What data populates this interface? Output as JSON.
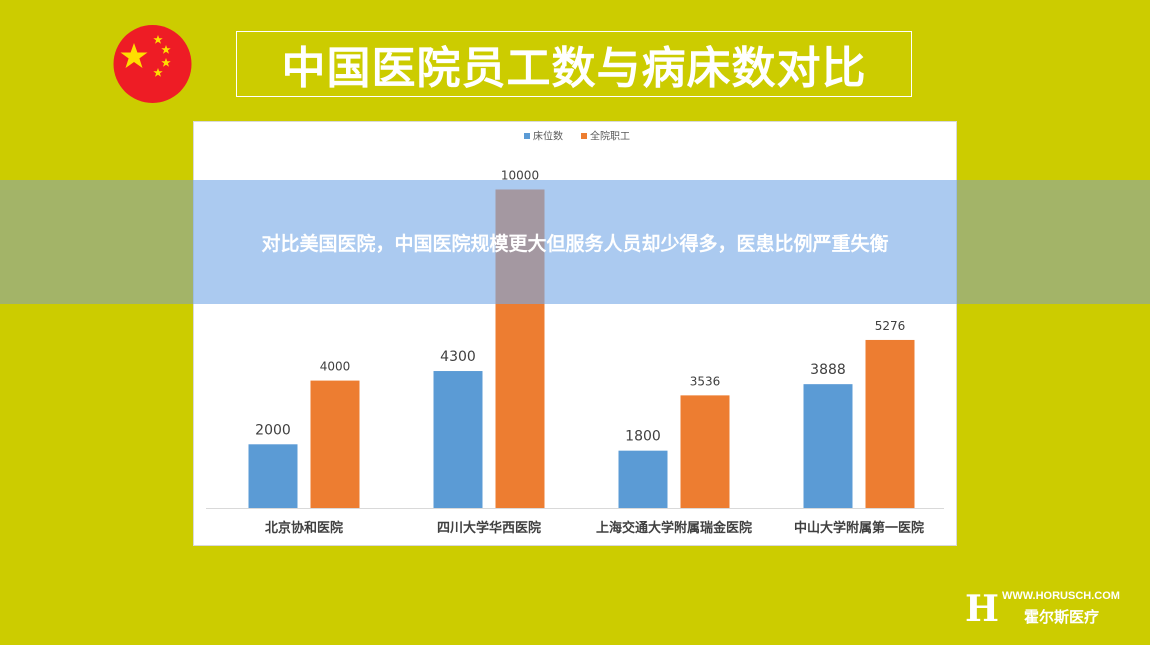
{
  "header": {
    "title": "中国医院员工数与病床数对比"
  },
  "overlay": {
    "text": "对比美国医院，中国医院规模更大但服务人员却少得多，医患比例严重失衡"
  },
  "brand": {
    "url": "WWW.HORUSCH.COM",
    "name": "霍尔斯医疗",
    "logo_letter": "H"
  },
  "colors": {
    "background": "#cccc00",
    "series_beds": "#5b9bd5",
    "series_staff": "#ed7d31",
    "flag_red": "#ee1c25",
    "flag_star": "#ffde00"
  },
  "chart_data": {
    "type": "bar",
    "categories": [
      "北京协和医院",
      "四川大学华西医院",
      "上海交通大学附属瑞金医院",
      "中山大学附属第一医院"
    ],
    "series": [
      {
        "name": "床位数",
        "values": [
          2000,
          4300,
          1800,
          3888
        ]
      },
      {
        "name": "全院职工",
        "values": [
          4000,
          10000,
          3536,
          5276
        ]
      }
    ],
    "ylim": [
      0,
      10800
    ],
    "legend": "top-center",
    "grid": false,
    "axis_visible": false
  }
}
